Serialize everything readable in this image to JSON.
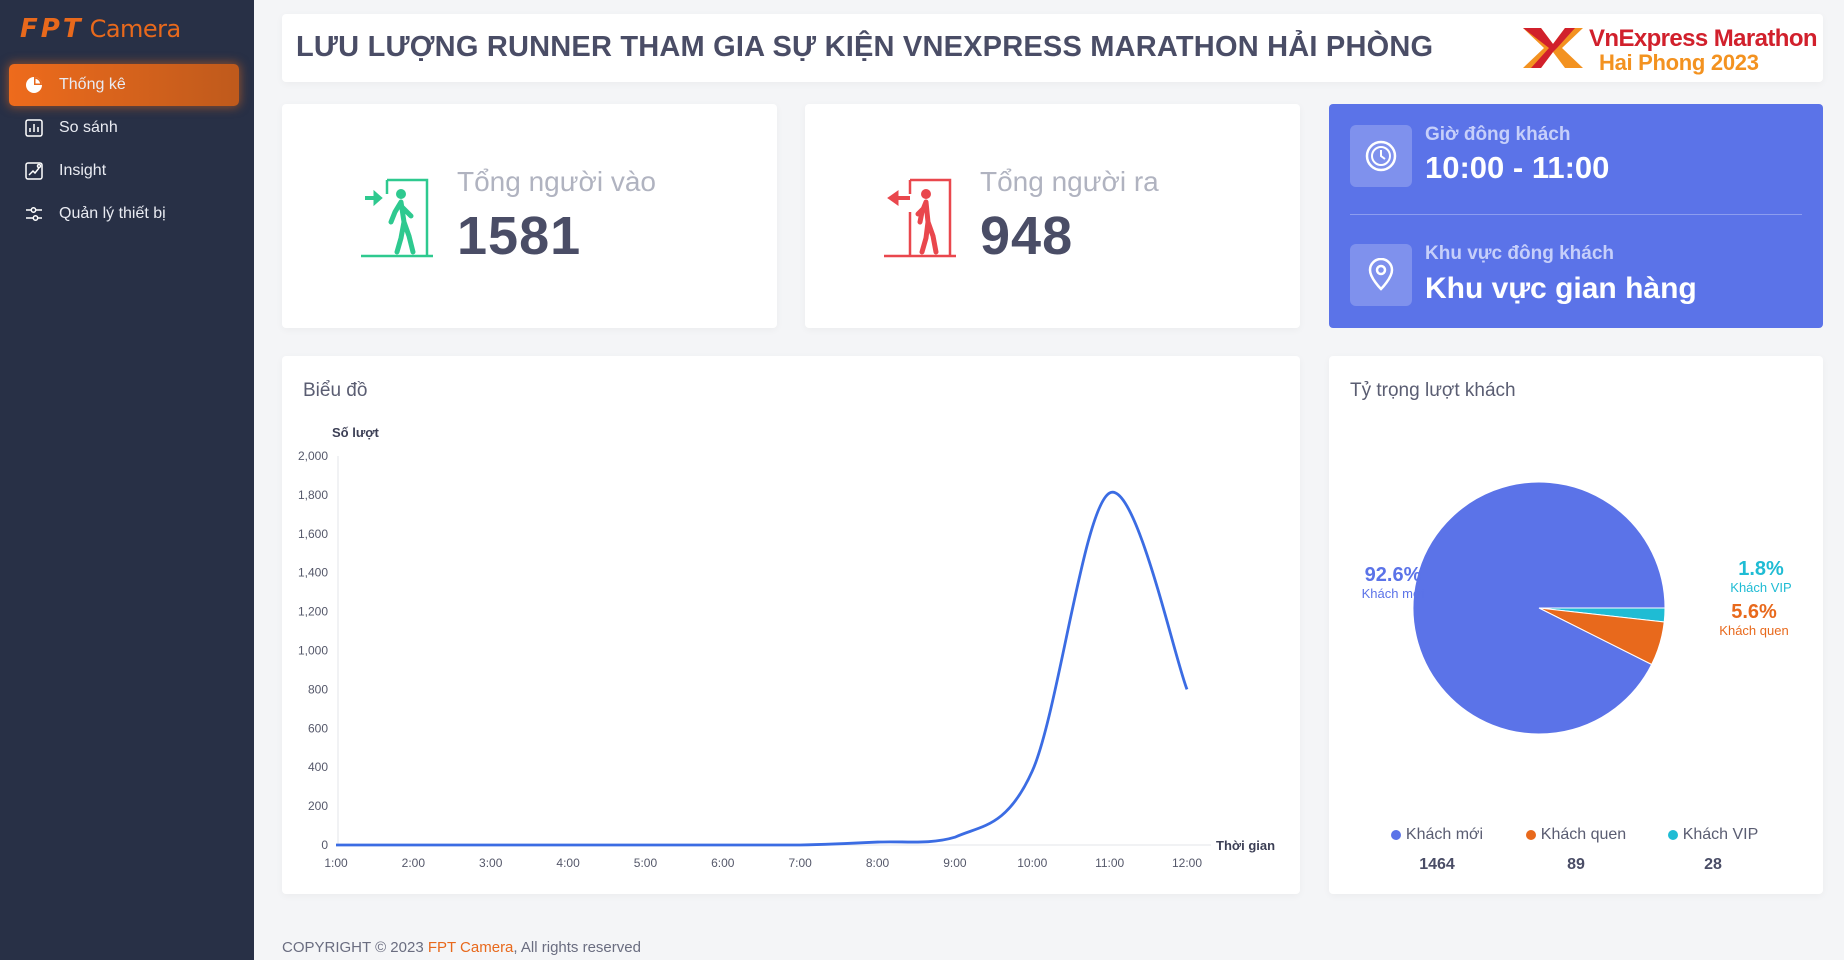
{
  "logo": {
    "fpt": "FPT",
    "camera": "Camera"
  },
  "sidebar": {
    "items": [
      {
        "label": "Thống kê",
        "icon": "pie-chart-icon",
        "active": true
      },
      {
        "label": "So sánh",
        "icon": "bar-chart-icon",
        "active": false
      },
      {
        "label": "Insight",
        "icon": "trend-icon",
        "active": false
      },
      {
        "label": "Quản lý thiết bị",
        "icon": "settings-sliders-icon",
        "active": false
      }
    ]
  },
  "header": {
    "title": "LƯU LƯỢNG RUNNER THAM GIA SỰ KIỆN VNEXPRESS MARATHON HẢI PHÒNG",
    "brand_line1": "VnExpress Marathon",
    "brand_line2": "Hai Phong 2023"
  },
  "stats": {
    "in_label": "Tổng người vào",
    "in_value": "1581",
    "out_label": "Tổng người ra",
    "out_value": "948"
  },
  "peak": {
    "time_label": "Giờ đông khách",
    "time_value": "10:00 - 11:00",
    "area_label": "Khu vực đông khách",
    "area_value": "Khu vực gian hàng"
  },
  "line_card": {
    "title": "Biểu đồ"
  },
  "pie_card": {
    "title": "Tỷ trọng lượt khách"
  },
  "footer": {
    "prefix": "COPYRIGHT © 2023 ",
    "brand": "FPT Camera",
    "suffix": ", All rights reserved"
  },
  "colors": {
    "accent": "#e8691c",
    "sidebar": "#283046",
    "blue": "#5b73e8",
    "green": "#2ec98f",
    "red": "#e9474d",
    "cyan": "#1fbcd4"
  },
  "chart_data": [
    {
      "type": "line",
      "ylabel": "Số lượt",
      "xlabel": "Thời gian",
      "ylim": [
        0,
        2000
      ],
      "yticks": [
        "0",
        "200",
        "400",
        "600",
        "800",
        "1,000",
        "1,200",
        "1,400",
        "1,600",
        "1,800",
        "2,000"
      ],
      "x": [
        "1:00",
        "2:00",
        "3:00",
        "4:00",
        "5:00",
        "6:00",
        "7:00",
        "8:00",
        "9:00",
        "10:00",
        "11:00",
        "12:00"
      ],
      "series": [
        {
          "values": [
            0,
            0,
            0,
            0,
            0,
            0,
            0,
            15,
            40,
            380,
            1810,
            800
          ]
        }
      ]
    },
    {
      "type": "pie",
      "slices": [
        {
          "label": "Khách mới",
          "percent": "92.6%",
          "count": "1464",
          "value": 1464,
          "color": "#5b73e8"
        },
        {
          "label": "Khách quen",
          "percent": "5.6%",
          "count": "89",
          "value": 89,
          "color": "#e8691c"
        },
        {
          "label": "Khách VIP",
          "percent": "1.8%",
          "count": "28",
          "value": 28,
          "color": "#1fbcd4"
        }
      ]
    }
  ]
}
